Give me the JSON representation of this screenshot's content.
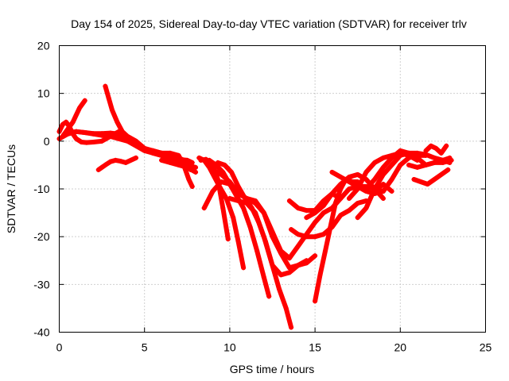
{
  "chart_data": {
    "type": "scatter",
    "title": "Day 154 of 2025, Sidereal Day-to-day VTEC variation (SDTVAR) for receiver trlv",
    "xlabel": "GPS time / hours",
    "ylabel": "SDTVAR / TECUs",
    "xlim": [
      0,
      25
    ],
    "ylim": [
      -40,
      20
    ],
    "xticks": [
      "0",
      "5",
      "10",
      "15",
      "20",
      "25"
    ],
    "yticks": [
      "-40",
      "-30",
      "-20",
      "-10",
      "0",
      "10",
      "20"
    ],
    "grid": true,
    "marker": "plus",
    "color": "#ff0000",
    "series": [
      {
        "x": [
          0.0,
          0.5,
          1.0,
          1.5,
          2.0,
          2.5,
          3.0,
          3.5,
          4.0,
          4.5,
          5.0,
          5.5,
          6.0,
          6.5,
          7.0,
          7.5,
          8.0
        ],
        "y": [
          0.5,
          1.5,
          2.0,
          1.8,
          1.5,
          1.2,
          1.0,
          0.5,
          0.0,
          -1.0,
          -2.0,
          -2.5,
          -3.0,
          -3.5,
          -4.0,
          -5.0,
          -5.5
        ]
      },
      {
        "x": [
          0.0,
          0.2,
          0.4,
          0.6,
          0.8,
          1.0,
          1.3,
          1.6,
          2.0,
          2.5,
          3.0,
          3.5
        ],
        "y": [
          2.0,
          3.5,
          4.0,
          3.0,
          1.5,
          0.5,
          -0.2,
          -0.3,
          -0.2,
          0.0,
          1.0,
          2.0
        ]
      },
      {
        "x": [
          0.2,
          0.5,
          0.8,
          1.0,
          1.2,
          1.5
        ],
        "y": [
          1.0,
          2.5,
          4.0,
          5.5,
          7.0,
          8.5
        ]
      },
      {
        "x": [
          2.7,
          2.9,
          3.1,
          3.4,
          3.7,
          4.0,
          4.5,
          5.0,
          5.5,
          6.0,
          6.5,
          7.0,
          7.5,
          7.7
        ],
        "y": [
          11.5,
          9.0,
          6.5,
          4.0,
          2.0,
          1.0,
          0.0,
          -1.5,
          -2.5,
          -3.0,
          -3.5,
          -4.0,
          -5.0,
          -6.0
        ]
      },
      {
        "x": [
          0.5,
          1.0,
          1.5,
          2.0,
          2.5,
          3.0,
          3.5,
          4.0,
          4.5,
          5.0,
          5.5,
          6.0,
          6.5,
          7.0,
          7.3
        ],
        "y": [
          1.8,
          2.0,
          1.8,
          1.6,
          1.6,
          1.7,
          1.5,
          0.5,
          -0.5,
          -1.5,
          -2.0,
          -2.5,
          -3.0,
          -3.5,
          -4.0
        ]
      },
      {
        "x": [
          2.3,
          2.7,
          3.0,
          3.3,
          3.6,
          3.9,
          4.2,
          4.5
        ],
        "y": [
          -6.0,
          -5.0,
          -4.3,
          -4.0,
          -4.2,
          -4.5,
          -4.0,
          -3.5
        ]
      },
      {
        "x": [
          5.5,
          6.0,
          6.5,
          7.0,
          7.3,
          7.6,
          7.8
        ],
        "y": [
          -2.0,
          -2.5,
          -2.5,
          -3.0,
          -5.0,
          -8.0,
          -9.5
        ]
      },
      {
        "x": [
          6.0,
          6.5,
          7.0,
          7.5,
          8.0
        ],
        "y": [
          -4.0,
          -4.5,
          -5.0,
          -5.5,
          -6.5
        ]
      },
      {
        "x": [
          5.0,
          5.5,
          6.0,
          6.5,
          7.0,
          7.5,
          7.8
        ],
        "y": [
          -1.8,
          -2.5,
          -3.0,
          -3.5,
          -3.8,
          -4.0,
          -4.5
        ]
      },
      {
        "x": [
          8.3,
          8.6,
          9.0,
          9.3,
          9.6,
          9.9
        ],
        "y": [
          -4.0,
          -3.8,
          -5.0,
          -8.0,
          -14.0,
          -20.5
        ]
      },
      {
        "x": [
          8.2,
          8.5,
          8.8,
          9.1,
          9.4,
          9.8,
          10.2,
          10.5,
          10.8
        ],
        "y": [
          -3.5,
          -4.0,
          -5.5,
          -7.5,
          -9.5,
          -12.0,
          -16.0,
          -21.0,
          -26.5
        ]
      },
      {
        "x": [
          8.8,
          9.2,
          9.6,
          10.0,
          10.4,
          10.8,
          11.2,
          11.6,
          12.0,
          12.3
        ],
        "y": [
          -4.0,
          -5.0,
          -6.5,
          -9.0,
          -11.5,
          -14.0,
          -18.0,
          -23.0,
          -28.5,
          -32.5
        ]
      },
      {
        "x": [
          9.3,
          9.7,
          10.1,
          10.5,
          10.9,
          11.3,
          11.7,
          12.1,
          12.5,
          12.9,
          13.3,
          13.6
        ],
        "y": [
          -4.5,
          -5.0,
          -6.5,
          -9.5,
          -12.0,
          -14.0,
          -17.0,
          -21.0,
          -26.0,
          -31.0,
          -35.0,
          -39.0
        ]
      },
      {
        "x": [
          9.0,
          9.5,
          10.0,
          10.5,
          11.0,
          11.5,
          12.0,
          12.5,
          13.0,
          13.5,
          14.0,
          14.5,
          15.0
        ],
        "y": [
          -6.0,
          -7.0,
          -8.5,
          -11.0,
          -12.0,
          -12.5,
          -15.0,
          -20.0,
          -23.5,
          -26.5,
          -26.0,
          -25.5,
          -24.0
        ]
      },
      {
        "x": [
          10.0,
          10.5,
          11.0,
          11.5,
          12.0,
          12.5,
          13.0,
          13.5,
          14.0,
          14.5
        ],
        "y": [
          -12.0,
          -12.5,
          -13.0,
          -15.0,
          -20.0,
          -26.0,
          -28.0,
          -27.5,
          -26.0,
          -25.0
        ]
      },
      {
        "x": [
          8.5,
          9.0,
          9.5,
          10.0
        ],
        "y": [
          -14.0,
          -10.5,
          -8.5,
          -9.0
        ]
      },
      {
        "x": [
          11.0,
          11.5,
          12.0,
          12.5,
          13.0,
          13.5,
          14.0,
          14.5,
          15.0,
          15.5,
          16.0,
          16.5,
          17.0,
          17.5,
          18.0,
          18.5,
          19.0
        ],
        "y": [
          -12.0,
          -13.0,
          -15.0,
          -19.0,
          -23.0,
          -24.5,
          -22.0,
          -19.5,
          -17.0,
          -15.0,
          -14.0,
          -12.0,
          -10.0,
          -9.5,
          -9.5,
          -10.0,
          -10.5
        ]
      },
      {
        "x": [
          13.5,
          14.0,
          14.5,
          15.0,
          15.5,
          16.0,
          16.5
        ],
        "y": [
          -12.5,
          -14.0,
          -14.5,
          -14.5,
          -12.5,
          -11.0,
          -12.0
        ]
      },
      {
        "x": [
          14.5,
          15.0,
          15.5,
          16.0,
          16.5,
          17.0,
          17.5,
          18.0,
          18.5,
          19.0
        ],
        "y": [
          -16.0,
          -15.0,
          -13.5,
          -11.0,
          -9.0,
          -7.5,
          -7.0,
          -8.0,
          -10.0,
          -12.0
        ]
      },
      {
        "x": [
          15.0,
          15.3,
          15.6,
          15.9,
          16.2,
          16.5,
          16.8,
          17.2,
          17.5
        ],
        "y": [
          -33.5,
          -28.0,
          -23.0,
          -18.0,
          -13.0,
          -10.0,
          -8.0,
          -8.5,
          -8.5
        ]
      },
      {
        "x": [
          13.6,
          14.0,
          14.5,
          15.0,
          15.5,
          16.0,
          16.5,
          17.0,
          17.5,
          18.0
        ],
        "y": [
          -18.5,
          -19.5,
          -20.0,
          -20.0,
          -19.5,
          -18.0,
          -15.5,
          -14.5,
          -13.0,
          -12.5
        ]
      },
      {
        "x": [
          16.0,
          16.5,
          17.0,
          17.5,
          18.0,
          18.5,
          19.0,
          19.5,
          20.0,
          20.5,
          21.0,
          21.5
        ],
        "y": [
          -6.5,
          -7.5,
          -8.5,
          -9.5,
          -10.5,
          -11.0,
          -10.5,
          -8.0,
          -5.0,
          -3.5,
          -3.0,
          -3.0
        ]
      },
      {
        "x": [
          17.5,
          18.0,
          18.5,
          19.0,
          19.5,
          20.0,
          20.5,
          21.0,
          21.5,
          22.0,
          22.5,
          22.9
        ],
        "y": [
          -16.0,
          -14.0,
          -10.0,
          -7.0,
          -5.0,
          -3.0,
          -2.5,
          -2.5,
          -2.8,
          -3.5,
          -4.0,
          -4.5
        ]
      },
      {
        "x": [
          17.0,
          17.5,
          18.0,
          18.5,
          19.0,
          19.5,
          20.0,
          20.5,
          21.0
        ],
        "y": [
          -12.0,
          -10.0,
          -6.5,
          -4.5,
          -3.5,
          -3.0,
          -2.5,
          -3.0,
          -4.0
        ]
      },
      {
        "x": [
          18.0,
          18.5,
          19.0,
          19.5,
          20.0,
          20.5,
          21.0,
          21.5,
          22.0,
          22.5,
          22.9
        ],
        "y": [
          -10.0,
          -8.0,
          -5.5,
          -3.5,
          -2.0,
          -2.5,
          -3.5,
          -5.0,
          -4.5,
          -4.0,
          -3.5
        ]
      },
      {
        "x": [
          20.8,
          21.2,
          21.6,
          22.0,
          22.4,
          22.8
        ],
        "y": [
          -8.0,
          -8.5,
          -9.0,
          -8.0,
          -7.0,
          -6.0
        ]
      },
      {
        "x": [
          21.5,
          21.8,
          22.1,
          22.4,
          22.7
        ],
        "y": [
          -2.0,
          -1.0,
          -1.5,
          -2.5,
          -1.0
        ]
      },
      {
        "x": [
          20.5,
          21.0,
          21.5,
          22.0,
          22.5,
          23.0
        ],
        "y": [
          -5.0,
          -5.5,
          -5.0,
          -4.5,
          -4.5,
          -4.0
        ]
      },
      {
        "x": [
          18.5,
          19.0,
          19.5
        ],
        "y": [
          -10.5,
          -9.0,
          -10.5
        ]
      }
    ]
  }
}
